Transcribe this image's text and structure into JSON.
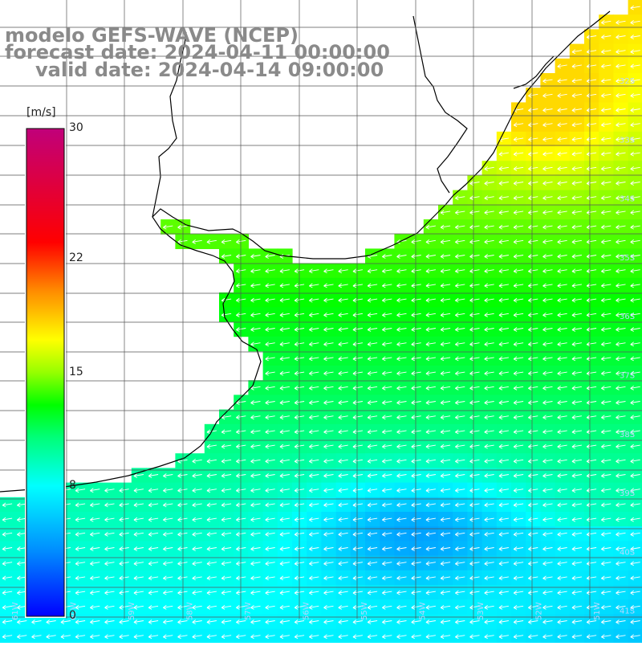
{
  "title": {
    "line1": "modelo GEFS-WAVE (NCEP)",
    "line2": "forecast date: 2024-04-11 00:00:00",
    "line3": "valid date: 2024-04-14 09:00:00"
  },
  "colorbar": {
    "unit": "[m/s]",
    "ticks": [
      "30",
      "22",
      "15",
      "8",
      "0"
    ],
    "tick_values": [
      30,
      22,
      15,
      8,
      0
    ],
    "min": 0,
    "max": 30,
    "colors": [
      "#0000ff",
      "#00b4ff",
      "#00ffff",
      "#00ff00",
      "#ffff00",
      "#ff8800",
      "#ff0000",
      "#c0007a"
    ]
  },
  "grid": {
    "lat_labels": [
      "32S",
      "33S",
      "34S",
      "35S",
      "36S",
      "37S",
      "38S",
      "39S",
      "40S",
      "41S"
    ],
    "lon_labels": [
      "61W",
      "60W",
      "59W",
      "58W",
      "57W",
      "56W",
      "55W",
      "54W",
      "53W",
      "52W",
      "51W"
    ]
  },
  "colors": {
    "land": "#ffffff",
    "coast": "#000000",
    "grid_line": "#555555",
    "arrow": "#ffffff",
    "title": "#8a8a8a"
  }
}
